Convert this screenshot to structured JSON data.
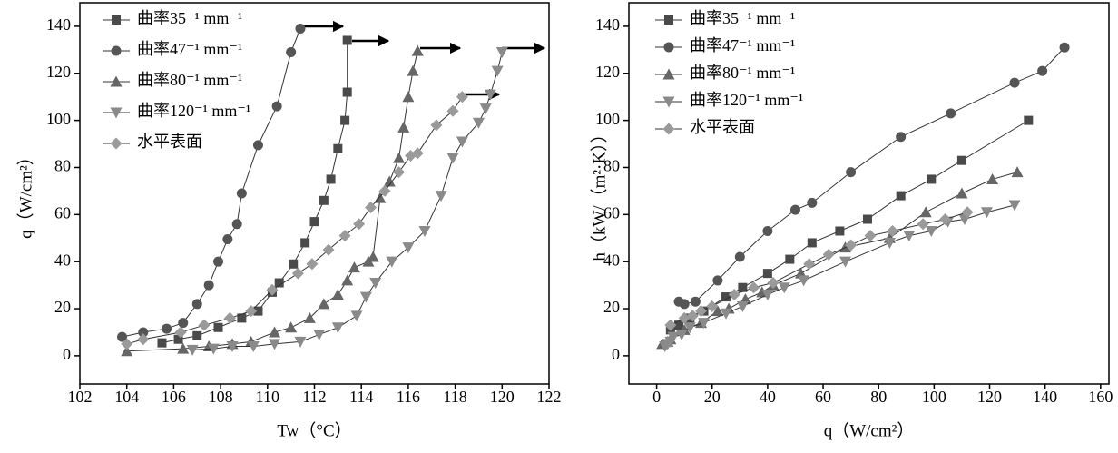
{
  "chart_data": [
    {
      "type": "line",
      "x_label": "Tw（°C）",
      "y_label": "q（W/cm²）",
      "xlim": [
        102,
        122
      ],
      "ylim": [
        -12,
        150
      ],
      "xticks": [
        102,
        104,
        106,
        108,
        110,
        112,
        114,
        116,
        118,
        120,
        122
      ],
      "yticks": [
        0,
        20,
        40,
        60,
        80,
        100,
        120,
        140
      ],
      "legend": "upper left",
      "series": [
        {
          "name": "曲率35⁻¹ mm⁻¹",
          "color": "#4a4a4a",
          "marker": "square",
          "x": [
            105.5,
            106.2,
            107,
            107.9,
            108.9,
            109.6,
            110.2,
            110.5,
            111.1,
            111.6,
            112,
            112.4,
            112.7,
            113,
            113.3,
            113.4,
            113.4
          ],
          "values": [
            5.5,
            7,
            8.5,
            12,
            16,
            19,
            27,
            31,
            39,
            48,
            57,
            66,
            75,
            88,
            100,
            112,
            134
          ]
        },
        {
          "name": "曲率47⁻¹ mm⁻¹",
          "color": "#555555",
          "marker": "circle",
          "x": [
            103.8,
            104.7,
            105.7,
            106.4,
            107,
            107.5,
            107.9,
            108.3,
            108.7,
            108.9,
            109.6,
            110.4,
            111,
            111.4
          ],
          "values": [
            8,
            10,
            11.5,
            14,
            22,
            30,
            40,
            49.5,
            56,
            69,
            89.5,
            106,
            129,
            139
          ]
        },
        {
          "name": "曲率80⁻¹ mm⁻¹",
          "color": "#666666",
          "marker": "triangle",
          "x": [
            104,
            106.4,
            107.5,
            108.5,
            109.3,
            110.3,
            111,
            111.8,
            112.4,
            113,
            113.4,
            113.7,
            114.3,
            114.5,
            114.8,
            115.2,
            115.6,
            115.8,
            116,
            116.2,
            116.4
          ],
          "values": [
            2,
            3,
            4,
            5,
            6,
            10,
            12,
            16,
            22,
            26,
            32,
            37.5,
            40,
            42,
            67,
            74,
            84,
            97,
            110,
            121,
            129.5
          ]
        },
        {
          "name": "曲率120⁻¹ mm⁻¹",
          "color": "#8a8a8a",
          "marker": "triangle-down",
          "x": [
            106.8,
            107.7,
            108.5,
            109.4,
            110.3,
            111.4,
            112.2,
            113,
            113.8,
            114.2,
            114.6,
            115.3,
            116,
            116.7,
            117.4,
            117.9,
            118.3,
            119,
            119.3,
            119.5,
            119.8,
            120
          ],
          "values": [
            2.5,
            3,
            4,
            4,
            5,
            6,
            9,
            12,
            17,
            25,
            31,
            40,
            46,
            53,
            68,
            84,
            91,
            99,
            105,
            111,
            121,
            129
          ]
        },
        {
          "name": "水平表面",
          "color": "#9a9a9a",
          "marker": "diamond",
          "x": [
            104,
            104.7,
            106.3,
            107.3,
            108.4,
            109.3,
            110.2,
            111.3,
            111.9,
            112.6,
            113.3,
            113.9,
            114.4,
            115,
            115.6,
            116.1,
            116.4,
            117.2,
            117.9,
            118.3
          ],
          "values": [
            5,
            7,
            10,
            13,
            16,
            19,
            28,
            35,
            39,
            45,
            51,
            56,
            63,
            70,
            78,
            85,
            86,
            98,
            104,
            110
          ]
        }
      ]
    },
    {
      "type": "line",
      "x_label": "q（W/cm²）",
      "y_label": "h（kW/（m²·K））",
      "xlim": [
        -10,
        163
      ],
      "ylim": [
        -12,
        150
      ],
      "xticks": [
        0,
        20,
        40,
        60,
        80,
        100,
        120,
        140,
        160
      ],
      "yticks": [
        0,
        20,
        40,
        60,
        80,
        100,
        120,
        140
      ],
      "legend": "upper left",
      "series": [
        {
          "name": "曲率35⁻¹ mm⁻¹",
          "color": "#4a4a4a",
          "marker": "square",
          "x": [
            5,
            8,
            12,
            17,
            25,
            31,
            40,
            48,
            56,
            66,
            76,
            88,
            99,
            110,
            134
          ],
          "values": [
            11,
            13,
            16,
            19,
            25,
            29,
            35,
            41,
            48,
            53,
            58,
            68,
            75,
            83,
            100
          ]
        },
        {
          "name": "曲率47⁻¹ mm⁻¹",
          "color": "#555555",
          "marker": "circle",
          "x": [
            8,
            10,
            14,
            22,
            30,
            40,
            50,
            56,
            70,
            88,
            106,
            129,
            139,
            147
          ],
          "values": [
            23,
            22,
            23,
            32,
            42,
            53,
            62,
            65,
            78,
            93,
            103,
            116,
            121,
            131
          ]
        },
        {
          "name": "曲率80⁻¹ mm⁻¹",
          "color": "#666666",
          "marker": "triangle",
          "x": [
            2,
            4,
            5,
            10,
            16,
            22,
            26,
            32,
            38,
            42,
            52,
            68,
            84,
            97,
            110,
            121,
            130
          ],
          "values": [
            5,
            6,
            7,
            11,
            14,
            19,
            20,
            24,
            27,
            30,
            35,
            46,
            50,
            61,
            69,
            75,
            78
          ]
        },
        {
          "name": "曲率120⁻¹ mm⁻¹",
          "color": "#8a8a8a",
          "marker": "triangle-down",
          "x": [
            3,
            4,
            5,
            6,
            9,
            12,
            17,
            25,
            31,
            40,
            46,
            53,
            68,
            84,
            91,
            99,
            105,
            111,
            119,
            129
          ],
          "values": [
            4,
            5,
            6,
            8,
            9,
            12,
            14,
            18,
            21,
            26,
            29,
            32,
            40,
            48,
            51,
            53,
            57,
            58,
            61,
            64
          ]
        },
        {
          "name": "水平表面",
          "color": "#9a9a9a",
          "marker": "diamond",
          "x": [
            5,
            10,
            13,
            16,
            20,
            28,
            35,
            42,
            55,
            62,
            70,
            77,
            85,
            96,
            104,
            112
          ],
          "values": [
            13,
            16,
            17,
            19,
            21,
            26,
            29,
            31,
            39,
            43,
            47,
            51,
            53,
            56,
            58,
            61
          ]
        }
      ]
    }
  ]
}
